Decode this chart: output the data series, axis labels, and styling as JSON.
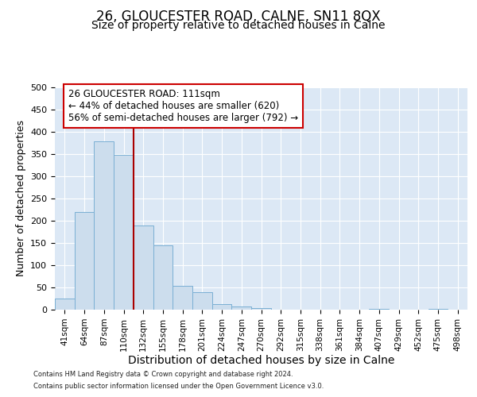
{
  "title1": "26, GLOUCESTER ROAD, CALNE, SN11 8QX",
  "title2": "Size of property relative to detached houses in Calne",
  "xlabel": "Distribution of detached houses by size in Calne",
  "ylabel": "Number of detached properties",
  "categories": [
    "41sqm",
    "64sqm",
    "87sqm",
    "110sqm",
    "132sqm",
    "155sqm",
    "178sqm",
    "201sqm",
    "224sqm",
    "247sqm",
    "270sqm",
    "292sqm",
    "315sqm",
    "338sqm",
    "361sqm",
    "384sqm",
    "407sqm",
    "429sqm",
    "452sqm",
    "475sqm",
    "498sqm"
  ],
  "values": [
    25,
    220,
    378,
    348,
    190,
    145,
    53,
    40,
    13,
    8,
    4,
    0,
    0,
    0,
    0,
    0,
    2,
    0,
    0,
    2,
    0
  ],
  "bar_color": "#ccdded",
  "bar_edge_color": "#7aafd4",
  "background_color": "#dce8f5",
  "ylim": [
    0,
    500
  ],
  "yticks": [
    0,
    50,
    100,
    150,
    200,
    250,
    300,
    350,
    400,
    450,
    500
  ],
  "vline_x": 3.5,
  "vline_color": "#aa0000",
  "annotation_box_color": "#ffffff",
  "annotation_border_color": "#cc0000",
  "annotation_line1": "26 GLOUCESTER ROAD: 111sqm",
  "annotation_line2": "← 44% of detached houses are smaller (620)",
  "annotation_line3": "56% of semi-detached houses are larger (792) →",
  "footer1": "Contains HM Land Registry data © Crown copyright and database right 2024.",
  "footer2": "Contains public sector information licensed under the Open Government Licence v3.0.",
  "grid_color": "#ffffff",
  "title1_fontsize": 12,
  "title2_fontsize": 10,
  "xlabel_fontsize": 10,
  "ylabel_fontsize": 9,
  "ann_fontsize": 8.5
}
